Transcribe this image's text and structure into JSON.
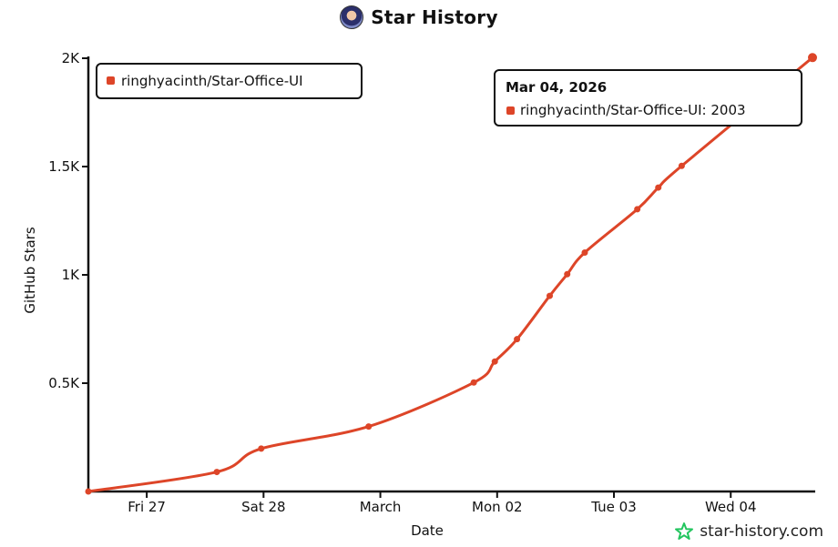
{
  "header": {
    "title": "Star History",
    "avatar_icon": "avatar-icon"
  },
  "footer": {
    "brand": "star-history.com",
    "brand_icon": "star-logo-icon",
    "brand_color": "#22c55e"
  },
  "legend": {
    "label": "ringhyacinth/Star-Office-UI"
  },
  "tooltip": {
    "date": "Mar 04, 2026",
    "label": "ringhyacinth/Star-Office-UI: 2003"
  },
  "colors": {
    "series": "#dd4528",
    "axis": "#111111"
  },
  "chart_data": {
    "type": "line",
    "xlabel": "Date",
    "ylabel": "GitHub Stars",
    "ylim": [
      0,
      2000
    ],
    "yticks": [
      {
        "v": 500,
        "label": "0.5K"
      },
      {
        "v": 1000,
        "label": "1K"
      },
      {
        "v": 1500,
        "label": "1.5K"
      },
      {
        "v": 2000,
        "label": "2K"
      }
    ],
    "xlim": [
      0,
      6.2
    ],
    "xticks": [
      {
        "t": 0.5,
        "label": "Fri 27"
      },
      {
        "t": 1.5,
        "label": "Sat 28"
      },
      {
        "t": 2.5,
        "label": "March"
      },
      {
        "t": 3.5,
        "label": "Mon 02"
      },
      {
        "t": 4.5,
        "label": "Tue 03"
      },
      {
        "t": 5.5,
        "label": "Wed 04"
      }
    ],
    "series": [
      {
        "name": "ringhyacinth/Star-Office-UI",
        "x": [
          0,
          1.1,
          1.48,
          2.4,
          3.3,
          3.48,
          3.67,
          3.95,
          4.1,
          4.25,
          4.7,
          4.88,
          5.08,
          6.2
        ],
        "y": [
          0,
          90,
          198,
          300,
          503,
          600,
          703,
          903,
          1003,
          1103,
          1303,
          1403,
          1503,
          2003
        ]
      }
    ]
  }
}
